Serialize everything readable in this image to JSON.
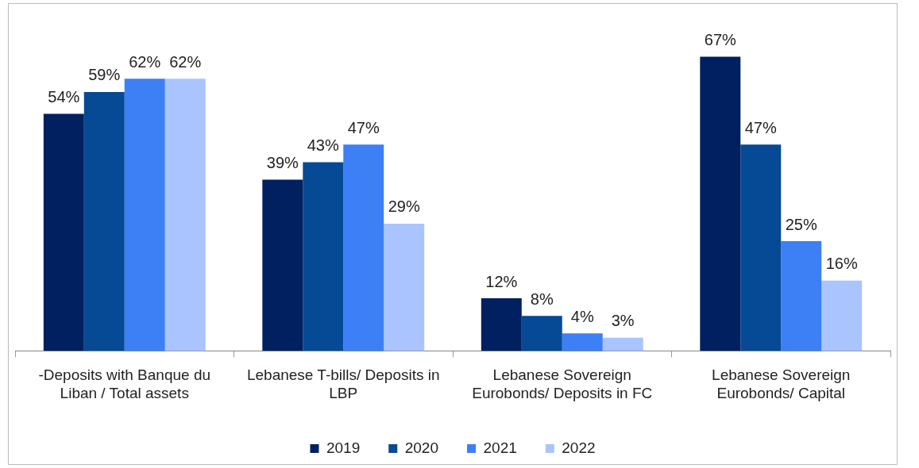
{
  "chart_data": {
    "type": "bar",
    "categories": [
      "-Deposits with Banque du Liban / Total assets",
      "Lebanese T-bills/ Deposits in LBP",
      "Lebanese Sovereign Eurobonds/ Deposits in FC",
      "Lebanese Sovereign Eurobonds/ Capital"
    ],
    "series": [
      {
        "name": "2019",
        "color": "#002060",
        "values": [
          54,
          39,
          12,
          67
        ],
        "value_labels": [
          "54%",
          "39%",
          "12%",
          "67%"
        ]
      },
      {
        "name": "2020",
        "color": "#064a96",
        "values": [
          59,
          43,
          8,
          47
        ],
        "value_labels": [
          "59%",
          "43%",
          "8%",
          "47%"
        ]
      },
      {
        "name": "2021",
        "color": "#3d80f5",
        "values": [
          62,
          47,
          4,
          25
        ],
        "value_labels": [
          "62%",
          "47%",
          "4%",
          "25%"
        ]
      },
      {
        "name": "2022",
        "color": "#a9c4ff",
        "values": [
          62,
          29,
          3,
          16
        ],
        "value_labels": [
          "62%",
          "29%",
          "3%",
          "16%"
        ]
      }
    ],
    "grid": false,
    "legend": "bottom"
  }
}
